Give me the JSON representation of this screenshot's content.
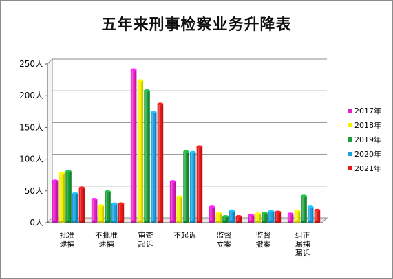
{
  "chart_data": {
    "type": "bar",
    "title": "五年来刑事检察业务升降表",
    "categories": [
      [
        "批准",
        "逮捕"
      ],
      [
        "不批准",
        "逮捕"
      ],
      [
        "审查",
        "起诉"
      ],
      [
        "不起诉"
      ],
      [
        "监督",
        "立案"
      ],
      [
        "监督",
        "撤案"
      ],
      [
        "纠正",
        "漏捕",
        "漏诉"
      ]
    ],
    "series": [
      {
        "name": "2017年",
        "color": "#e620c8",
        "values": [
          66,
          37,
          241,
          65,
          25,
          12,
          14
        ]
      },
      {
        "name": "2018年",
        "color": "#f0f000",
        "values": [
          78,
          27,
          224,
          41,
          15,
          14,
          19
        ]
      },
      {
        "name": "2019年",
        "color": "#1a9e3a",
        "values": [
          81,
          49,
          208,
          112,
          10,
          15,
          42
        ]
      },
      {
        "name": "2020年",
        "color": "#1aa0e0",
        "values": [
          46,
          30,
          174,
          111,
          19,
          18,
          25
        ]
      },
      {
        "name": "2021年",
        "color": "#e61a1a",
        "values": [
          55,
          30,
          187,
          120,
          10,
          17,
          20
        ]
      }
    ],
    "y_ticks": [
      "0人",
      "50人",
      "100人",
      "150人",
      "200人",
      "250人"
    ],
    "ylim": [
      0,
      250
    ],
    "grid": true,
    "legend_position": "right"
  }
}
